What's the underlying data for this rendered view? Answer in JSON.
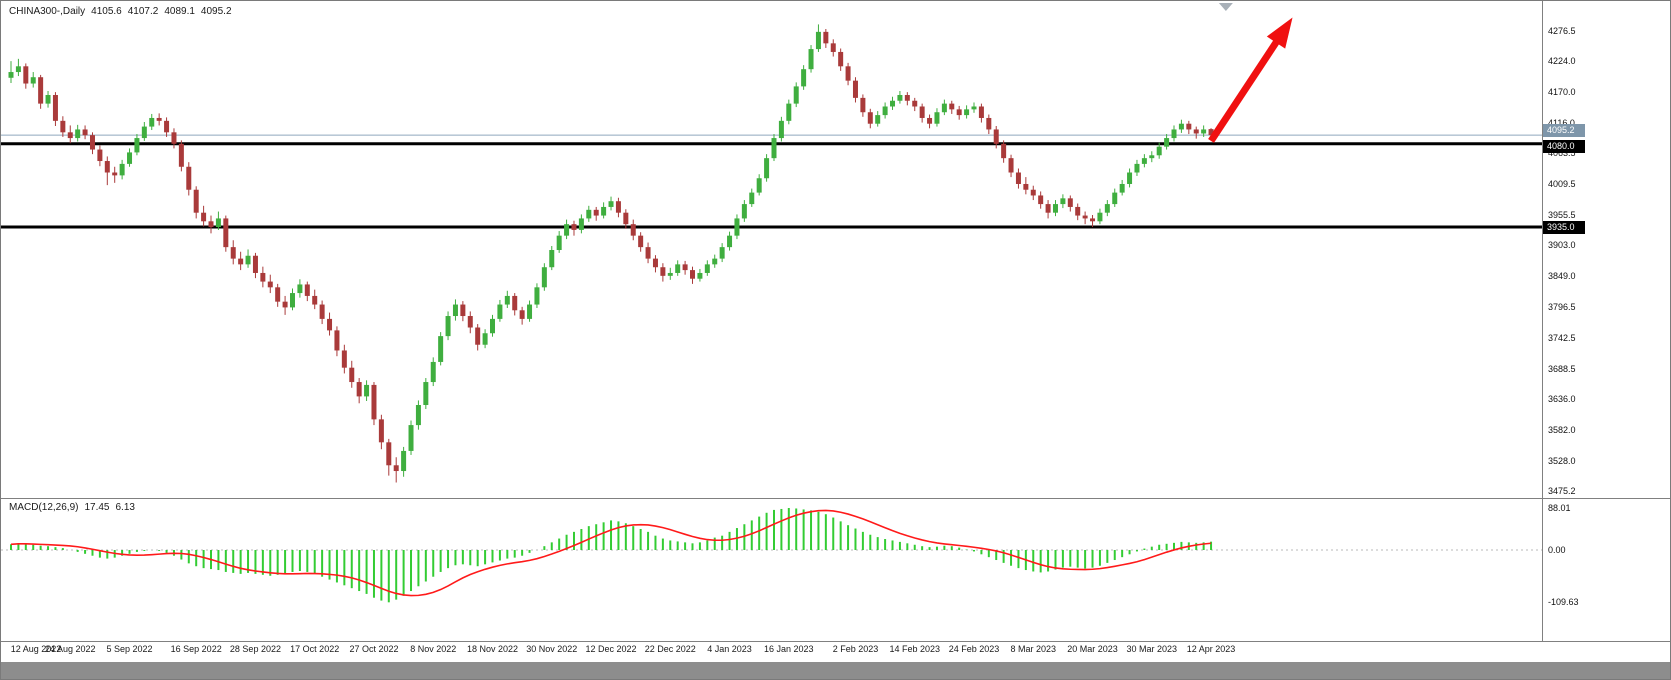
{
  "header": {
    "symbol_period": "CHINA300-,Daily",
    "open": "4105.6",
    "high": "4107.2",
    "low": "4089.1",
    "close": "4095.2"
  },
  "price_axis": {
    "labels": [
      "4276.5",
      "4224.0",
      "4170.0",
      "4116.0",
      "4063.5",
      "4009.5",
      "3955.5",
      "3903.0",
      "3849.0",
      "3796.5",
      "3742.5",
      "3688.5",
      "3636.0",
      "3582.0",
      "3528.0",
      "3475.2"
    ],
    "tags": [
      {
        "value": "4095.2",
        "type": "bid-price",
        "bg": "#7e96aa"
      },
      {
        "value": "4080.0",
        "type": "level",
        "bg": "#000000"
      },
      {
        "value": "3935.0",
        "type": "level",
        "bg": "#000000"
      }
    ]
  },
  "macd": {
    "label": "MACD(12,26,9)",
    "value_main": "17.45",
    "value_signal": "6.13",
    "axis_labels": [
      "88.01",
      "0.00",
      "-109.63"
    ]
  },
  "x_axis": {
    "labels": [
      {
        "text": "12 Aug 2022",
        "i": 0
      },
      {
        "text": "24 Aug 2022",
        "i": 8
      },
      {
        "text": "5 Sep 2022",
        "i": 16
      },
      {
        "text": "16 Sep 2022",
        "i": 25
      },
      {
        "text": "28 Sep 2022",
        "i": 33
      },
      {
        "text": "17 Oct 2022",
        "i": 41
      },
      {
        "text": "27 Oct 2022",
        "i": 49
      },
      {
        "text": "8 Nov 2022",
        "i": 57
      },
      {
        "text": "18 Nov 2022",
        "i": 65
      },
      {
        "text": "30 Nov 2022",
        "i": 73
      },
      {
        "text": "12 Dec 2022",
        "i": 81
      },
      {
        "text": "22 Dec 2022",
        "i": 89
      },
      {
        "text": "4 Jan 2023",
        "i": 97
      },
      {
        "text": "16 Jan 2023",
        "i": 105
      },
      {
        "text": "2 Feb 2023",
        "i": 114
      },
      {
        "text": "14 Feb 2023",
        "i": 122
      },
      {
        "text": "24 Feb 2023",
        "i": 130
      },
      {
        "text": "8 Mar 2023",
        "i": 138
      },
      {
        "text": "20 Mar 2023",
        "i": 146
      },
      {
        "text": "30 Mar 2023",
        "i": 154
      },
      {
        "text": "12 Apr 2023",
        "i": 162
      }
    ]
  },
  "chart_data": {
    "type": "candlestick",
    "title": "CHINA300-,Daily",
    "ylim": [
      3475.2,
      4276.5
    ],
    "bid_price": 4095.2,
    "horizontal_levels": [
      4080.0,
      3935.0
    ],
    "shift_marker_index": 164,
    "colors": {
      "up": "#3fae3f",
      "down": "#a93a3a",
      "bid_line": "#8fa8bd",
      "level_line": "#000000",
      "macd_hist": "#33cc33",
      "macd_signal": "#ff1a1a",
      "arrow": "#f01010"
    },
    "candles": [
      [
        4195,
        4224,
        4186,
        4205
      ],
      [
        4205,
        4228,
        4198,
        4215
      ],
      [
        4215,
        4220,
        4176,
        4185
      ],
      [
        4185,
        4205,
        4178,
        4196
      ],
      [
        4196,
        4200,
        4141,
        4150
      ],
      [
        4150,
        4172,
        4143,
        4165
      ],
      [
        4165,
        4170,
        4111,
        4120
      ],
      [
        4120,
        4128,
        4092,
        4100
      ],
      [
        4100,
        4112,
        4081,
        4090
      ],
      [
        4090,
        4113,
        4084,
        4105
      ],
      [
        4105,
        4112,
        4088,
        4095
      ],
      [
        4095,
        4100,
        4062,
        4070
      ],
      [
        4070,
        4077,
        4041,
        4050
      ],
      [
        4050,
        4058,
        4008,
        4030
      ],
      [
        4030,
        4040,
        4012,
        4025
      ],
      [
        4025,
        4052,
        4018,
        4045
      ],
      [
        4045,
        4072,
        4040,
        4065
      ],
      [
        4065,
        4097,
        4060,
        4090
      ],
      [
        4090,
        4118,
        4085,
        4110
      ],
      [
        4110,
        4132,
        4104,
        4125
      ],
      [
        4125,
        4133,
        4112,
        4120
      ],
      [
        4120,
        4126,
        4092,
        4100
      ],
      [
        4100,
        4107,
        4072,
        4080
      ],
      [
        4080,
        4086,
        4032,
        4040
      ],
      [
        4040,
        4048,
        3990,
        4000
      ],
      [
        4000,
        4006,
        3950,
        3960
      ],
      [
        3960,
        3972,
        3936,
        3945
      ],
      [
        3945,
        3955,
        3924,
        3935
      ],
      [
        3935,
        3962,
        3930,
        3950
      ],
      [
        3950,
        3955,
        3892,
        3900
      ],
      [
        3900,
        3912,
        3870,
        3880
      ],
      [
        3880,
        3892,
        3860,
        3870
      ],
      [
        3870,
        3896,
        3864,
        3885
      ],
      [
        3885,
        3890,
        3846,
        3855
      ],
      [
        3855,
        3866,
        3830,
        3840
      ],
      [
        3840,
        3852,
        3820,
        3830
      ],
      [
        3830,
        3836,
        3796,
        3805
      ],
      [
        3805,
        3815,
        3782,
        3795
      ],
      [
        3795,
        3828,
        3790,
        3820
      ],
      [
        3820,
        3844,
        3812,
        3835
      ],
      [
        3835,
        3840,
        3806,
        3815
      ],
      [
        3815,
        3826,
        3792,
        3800
      ],
      [
        3800,
        3807,
        3766,
        3775
      ],
      [
        3775,
        3786,
        3746,
        3755
      ],
      [
        3755,
        3762,
        3710,
        3720
      ],
      [
        3720,
        3730,
        3680,
        3690
      ],
      [
        3690,
        3702,
        3655,
        3665
      ],
      [
        3665,
        3672,
        3628,
        3640
      ],
      [
        3640,
        3668,
        3632,
        3660
      ],
      [
        3660,
        3665,
        3590,
        3600
      ],
      [
        3600,
        3608,
        3548,
        3560
      ],
      [
        3560,
        3566,
        3502,
        3520
      ],
      [
        3520,
        3534,
        3490,
        3510
      ],
      [
        3510,
        3552,
        3500,
        3545
      ],
      [
        3545,
        3598,
        3538,
        3590
      ],
      [
        3590,
        3633,
        3582,
        3625
      ],
      [
        3625,
        3672,
        3618,
        3665
      ],
      [
        3665,
        3708,
        3658,
        3700
      ],
      [
        3700,
        3752,
        3694,
        3745
      ],
      [
        3745,
        3788,
        3738,
        3780
      ],
      [
        3780,
        3809,
        3772,
        3800
      ],
      [
        3800,
        3806,
        3771,
        3780
      ],
      [
        3780,
        3788,
        3750,
        3760
      ],
      [
        3760,
        3766,
        3720,
        3730
      ],
      [
        3730,
        3757,
        3724,
        3750
      ],
      [
        3750,
        3782,
        3744,
        3775
      ],
      [
        3775,
        3808,
        3770,
        3800
      ],
      [
        3800,
        3824,
        3794,
        3815
      ],
      [
        3815,
        3820,
        3781,
        3790
      ],
      [
        3790,
        3796,
        3765,
        3775
      ],
      [
        3775,
        3807,
        3770,
        3800
      ],
      [
        3800,
        3837,
        3794,
        3830
      ],
      [
        3830,
        3872,
        3824,
        3865
      ],
      [
        3865,
        3902,
        3860,
        3895
      ],
      [
        3895,
        3928,
        3890,
        3920
      ],
      [
        3920,
        3948,
        3914,
        3940
      ],
      [
        3940,
        3946,
        3920,
        3930
      ],
      [
        3930,
        3957,
        3924,
        3950
      ],
      [
        3950,
        3972,
        3944,
        3965
      ],
      [
        3965,
        3970,
        3946,
        3955
      ],
      [
        3955,
        3978,
        3950,
        3970
      ],
      [
        3970,
        3988,
        3964,
        3980
      ],
      [
        3980,
        3986,
        3952,
        3960
      ],
      [
        3960,
        3966,
        3932,
        3940
      ],
      [
        3940,
        3948,
        3912,
        3920
      ],
      [
        3920,
        3926,
        3892,
        3900
      ],
      [
        3900,
        3908,
        3872,
        3880
      ],
      [
        3880,
        3886,
        3856,
        3865
      ],
      [
        3865,
        3872,
        3840,
        3850
      ],
      [
        3850,
        3864,
        3843,
        3855
      ],
      [
        3855,
        3877,
        3850,
        3870
      ],
      [
        3870,
        3876,
        3852,
        3860
      ],
      [
        3860,
        3866,
        3836,
        3845
      ],
      [
        3845,
        3862,
        3840,
        3855
      ],
      [
        3855,
        3877,
        3850,
        3870
      ],
      [
        3870,
        3887,
        3864,
        3880
      ],
      [
        3880,
        3907,
        3874,
        3900
      ],
      [
        3900,
        3927,
        3894,
        3920
      ],
      [
        3920,
        3957,
        3914,
        3950
      ],
      [
        3950,
        3982,
        3944,
        3975
      ],
      [
        3975,
        4002,
        3970,
        3995
      ],
      [
        3995,
        4027,
        3990,
        4020
      ],
      [
        4020,
        4062,
        4014,
        4055
      ],
      [
        4055,
        4097,
        4050,
        4090
      ],
      [
        4090,
        4127,
        4084,
        4120
      ],
      [
        4120,
        4157,
        4114,
        4150
      ],
      [
        4150,
        4187,
        4144,
        4180
      ],
      [
        4180,
        4217,
        4174,
        4210
      ],
      [
        4210,
        4252,
        4204,
        4245
      ],
      [
        4245,
        4288,
        4240,
        4275
      ],
      [
        4275,
        4280,
        4247,
        4255
      ],
      [
        4255,
        4262,
        4232,
        4240
      ],
      [
        4240,
        4246,
        4207,
        4215
      ],
      [
        4215,
        4221,
        4182,
        4190
      ],
      [
        4190,
        4196,
        4152,
        4160
      ],
      [
        4160,
        4166,
        4127,
        4135
      ],
      [
        4135,
        4141,
        4107,
        4115
      ],
      [
        4115,
        4137,
        4110,
        4130
      ],
      [
        4130,
        4152,
        4124,
        4145
      ],
      [
        4145,
        4162,
        4139,
        4155
      ],
      [
        4155,
        4172,
        4150,
        4165
      ],
      [
        4165,
        4170,
        4147,
        4155
      ],
      [
        4155,
        4160,
        4137,
        4145
      ],
      [
        4145,
        4150,
        4117,
        4125
      ],
      [
        4125,
        4131,
        4107,
        4115
      ],
      [
        4115,
        4142,
        4110,
        4135
      ],
      [
        4135,
        4157,
        4130,
        4150
      ],
      [
        4150,
        4155,
        4132,
        4140
      ],
      [
        4140,
        4146,
        4122,
        4130
      ],
      [
        4130,
        4147,
        4124,
        4140
      ],
      [
        4140,
        4152,
        4134,
        4145
      ],
      [
        4145,
        4150,
        4117,
        4125
      ],
      [
        4125,
        4131,
        4097,
        4105
      ],
      [
        4105,
        4111,
        4072,
        4080
      ],
      [
        4080,
        4086,
        4047,
        4055
      ],
      [
        4055,
        4061,
        4022,
        4030
      ],
      [
        4030,
        4037,
        4002,
        4010
      ],
      [
        4010,
        4022,
        3992,
        4000
      ],
      [
        4000,
        4007,
        3982,
        3990
      ],
      [
        3990,
        3997,
        3967,
        3975
      ],
      [
        3975,
        3982,
        3950,
        3960
      ],
      [
        3960,
        3982,
        3954,
        3975
      ],
      [
        3975,
        3992,
        3968,
        3985
      ],
      [
        3985,
        3990,
        3962,
        3970
      ],
      [
        3970,
        3976,
        3947,
        3955
      ],
      [
        3955,
        3962,
        3940,
        3950
      ],
      [
        3950,
        3956,
        3935,
        3945
      ],
      [
        3945,
        3967,
        3940,
        3960
      ],
      [
        3960,
        3982,
        3954,
        3975
      ],
      [
        3975,
        4002,
        3970,
        3995
      ],
      [
        3995,
        4017,
        3990,
        4010
      ],
      [
        4010,
        4037,
        4004,
        4030
      ],
      [
        4030,
        4052,
        4024,
        4045
      ],
      [
        4045,
        4062,
        4039,
        4055
      ],
      [
        4055,
        4067,
        4048,
        4060
      ],
      [
        4060,
        4082,
        4054,
        4075
      ],
      [
        4075,
        4097,
        4070,
        4090
      ],
      [
        4090,
        4112,
        4084,
        4105
      ],
      [
        4105,
        4122,
        4099,
        4115
      ],
      [
        4115,
        4120,
        4097,
        4105
      ],
      [
        4105,
        4110,
        4089,
        4098
      ],
      [
        4098,
        4112,
        4092,
        4105
      ],
      [
        4105.6,
        4107.2,
        4089.1,
        4095.2
      ]
    ],
    "indicator": {
      "type": "MACD",
      "params": "12,26,9",
      "ylim": [
        -109.63,
        88.01
      ],
      "last_main": 17.45,
      "last_signal": 6.13,
      "histogram": [
        12,
        14,
        13,
        11,
        9,
        8,
        6,
        4,
        0,
        -4,
        -8,
        -12,
        -16,
        -18,
        -16,
        -12,
        -8,
        -4,
        -2,
        0,
        -2,
        -6,
        -12,
        -20,
        -28,
        -34,
        -38,
        -40,
        -42,
        -46,
        -48,
        -50,
        -48,
        -50,
        -52,
        -54,
        -52,
        -50,
        -46,
        -44,
        -46,
        -50,
        -56,
        -62,
        -68,
        -74,
        -80,
        -86,
        -92,
        -100,
        -106,
        -109.63,
        -104,
        -96,
        -86,
        -76,
        -66,
        -56,
        -46,
        -38,
        -32,
        -30,
        -32,
        -34,
        -30,
        -26,
        -22,
        -18,
        -16,
        -12,
        -6,
        0,
        8,
        16,
        24,
        32,
        38,
        44,
        50,
        54,
        58,
        62,
        60,
        56,
        50,
        44,
        38,
        30,
        24,
        20,
        18,
        16,
        14,
        16,
        20,
        26,
        30,
        38,
        46,
        54,
        62,
        70,
        78,
        84,
        86,
        88.01,
        87,
        85,
        83,
        80,
        75,
        68,
        60,
        52,
        45,
        38,
        32,
        27,
        23,
        20,
        17,
        14,
        11,
        8,
        6,
        7,
        9,
        8,
        5,
        1,
        -3,
        -9,
        -15,
        -21,
        -27,
        -33,
        -38,
        -42,
        -45,
        -47,
        -45,
        -41,
        -37,
        -35,
        -37,
        -39,
        -37,
        -33,
        -27,
        -21,
        -15,
        -9,
        -3,
        3,
        7,
        11,
        13,
        15,
        17,
        16,
        15,
        16,
        17.45
      ]
    },
    "annotation_arrow": {
      "from_index": 162,
      "from_price": 4085,
      "to_index": 173,
      "to_price": 4300,
      "color": "#f01010"
    }
  }
}
